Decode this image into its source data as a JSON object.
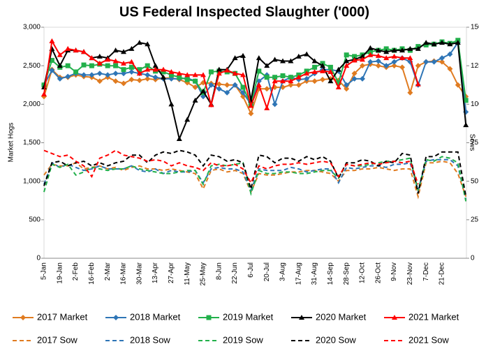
{
  "chart_data": {
    "type": "line",
    "title": "US Federal Inspected Slaughter ('000)",
    "y_label": "Market Hogs",
    "y2_label": "Sows",
    "categories": [
      "5-Jan",
      null,
      "19-Jan",
      null,
      "2-Feb",
      null,
      "16-Feb",
      null,
      "2-Mar",
      null,
      "16-Mar",
      null,
      "30-Mar",
      null,
      "13-Apr",
      null,
      "27-Apr",
      null,
      "11-May",
      null,
      "25-May",
      null,
      "8-Jun",
      null,
      "22-Jun",
      null,
      "6-Jul",
      null,
      "20-Jul",
      null,
      "3-Aug",
      null,
      "17-Aug",
      null,
      "31-Aug",
      null,
      "14-Sep",
      null,
      "28-Sep",
      null,
      "12-Oct",
      null,
      "26-Oct",
      null,
      "9-Nov",
      null,
      "23-Nov",
      null,
      "7-Dec",
      null,
      "21-Dec",
      null,
      null,
      null
    ],
    "ylim": [
      0,
      3000
    ],
    "yticks": [
      0,
      500,
      {
        "value": 1000,
        "label": "1,000"
      },
      {
        "value": 1500,
        "label": "1,500"
      },
      {
        "value": 2000,
        "label": "2,000"
      },
      {
        "value": 2500,
        "label": "2,500"
      },
      {
        "value": 3000,
        "label": "3,000"
      }
    ],
    "y2lim": [
      0,
      150
    ],
    "y2ticks": [
      0,
      25,
      50,
      75,
      100,
      125,
      150
    ],
    "series": [
      {
        "name": "2017 Market",
        "color": "#e07b20",
        "marker": "diamond",
        "values": [
          2100,
          2450,
          2350,
          2350,
          2380,
          2360,
          2350,
          2300,
          2350,
          2300,
          2270,
          2320,
          2310,
          2330,
          2320,
          2340,
          2340,
          2320,
          2280,
          2220,
          2280,
          2270,
          2260,
          2250,
          2250,
          2100,
          1880,
          2200,
          2200,
          2220,
          2220,
          2250,
          2250,
          2300,
          2300,
          2320,
          2330,
          2310,
          2200,
          2400,
          2500,
          2520,
          2500,
          2480,
          2500,
          2480,
          2150,
          2500,
          2550,
          2560,
          2550,
          2460,
          2250,
          2100
        ]
      },
      {
        "name": "2018 Market",
        "color": "#2e75b6",
        "marker": "diamond",
        "values": [
          2250,
          2440,
          2330,
          2360,
          2400,
          2380,
          2380,
          2400,
          2380,
          2400,
          2400,
          2420,
          2400,
          2380,
          2350,
          2330,
          2330,
          2330,
          2340,
          2300,
          2100,
          2250,
          2200,
          2150,
          2250,
          2150,
          2000,
          2300,
          2380,
          2000,
          2300,
          2350,
          2320,
          2330,
          2400,
          2450,
          2450,
          2430,
          2250,
          2330,
          2330,
          2550,
          2560,
          2500,
          2550,
          2600,
          2550,
          2250,
          2550,
          2550,
          2600,
          2650,
          2800,
          1900
        ]
      },
      {
        "name": "2019 Market",
        "color": "#22b04b",
        "marker": "square",
        "values": [
          2250,
          2570,
          2480,
          2500,
          2420,
          2510,
          2500,
          2520,
          2500,
          2500,
          2450,
          2480,
          2450,
          2500,
          2430,
          2420,
          2380,
          2350,
          2320,
          2300,
          2150,
          2420,
          2430,
          2420,
          2400,
          2220,
          2000,
          2430,
          2350,
          2350,
          2370,
          2350,
          2380,
          2430,
          2480,
          2530,
          2480,
          2280,
          2640,
          2620,
          2640,
          2680,
          2700,
          2720,
          2700,
          2720,
          2700,
          2750,
          2770,
          2780,
          2810,
          2790,
          2830,
          2050
        ]
      },
      {
        "name": "2020 Market",
        "color": "#000000",
        "marker": "triangle",
        "values": [
          2220,
          2720,
          2500,
          2700,
          2700,
          2680,
          2600,
          2620,
          2600,
          2700,
          2680,
          2720,
          2800,
          2780,
          2500,
          2350,
          2000,
          1550,
          1800,
          2050,
          2170,
          2000,
          2450,
          2450,
          2600,
          2630,
          2050,
          2600,
          2500,
          2580,
          2560,
          2560,
          2620,
          2650,
          2560,
          2500,
          2300,
          2450,
          2560,
          2580,
          2620,
          2730,
          2700,
          2680,
          2700,
          2700,
          2720,
          2720,
          2800,
          2780,
          2800,
          2780,
          2800,
          1730
        ]
      },
      {
        "name": "2021 Market",
        "color": "#ff0000",
        "marker": "triangle",
        "values": [
          2130,
          2820,
          2640,
          2720,
          2700,
          2680,
          2600,
          2530,
          2580,
          2560,
          2530,
          2550,
          2400,
          2450,
          2450,
          2450,
          2420,
          2400,
          2380,
          2380,
          2380,
          1990,
          2400,
          2440,
          2400,
          2380,
          1980,
          2250,
          1950,
          2300,
          2300,
          2300,
          2350,
          2400,
          2420,
          2430,
          2420,
          2220,
          2500,
          2570,
          2580,
          2640,
          2630,
          2600,
          2620,
          2600,
          2600,
          2260,
          null,
          null,
          null,
          null,
          null,
          null
        ]
      },
      {
        "name": "2017 Sow",
        "color": "#e07b20",
        "axis": "y2",
        "dashed": true,
        "values": [
          54,
          61,
          60,
          60,
          62,
          58,
          59,
          60,
          58,
          59,
          57,
          59,
          60,
          58,
          58,
          57,
          58,
          57,
          56,
          55,
          45,
          57,
          58,
          56,
          57,
          55,
          43,
          55,
          54,
          54,
          55,
          56,
          56,
          57,
          57,
          56,
          55,
          50,
          57,
          57,
          58,
          58,
          59,
          58,
          57,
          58,
          58,
          40,
          62,
          62,
          63,
          62,
          55,
          40
        ]
      },
      {
        "name": "2018 Sow",
        "color": "#2e75b6",
        "axis": "y2",
        "dashed": true,
        "values": [
          48,
          62,
          59,
          61,
          59,
          57,
          58,
          60,
          58,
          58,
          58,
          60,
          57,
          56,
          58,
          55,
          57,
          56,
          56,
          57,
          49,
          58,
          59,
          58,
          58,
          56,
          44,
          58,
          57,
          57,
          57,
          59,
          58,
          56,
          57,
          58,
          58,
          49,
          59,
          58,
          59,
          60,
          60,
          59,
          61,
          61,
          62,
          44,
          63,
          64,
          64,
          64,
          60,
          38
        ]
      },
      {
        "name": "2019 Sow",
        "color": "#22b04b",
        "axis": "y2",
        "dashed": true,
        "values": [
          43,
          61,
          59,
          61,
          54,
          56,
          59,
          58,
          57,
          58,
          58,
          60,
          58,
          57,
          56,
          55,
          55,
          56,
          57,
          57,
          48,
          60,
          61,
          60,
          61,
          62,
          42,
          57,
          55,
          55,
          56,
          56,
          55,
          55,
          56,
          57,
          57,
          52,
          61,
          60,
          60,
          61,
          62,
          63,
          63,
          64,
          65,
          44,
          64,
          63,
          66,
          65,
          62,
          37
        ]
      },
      {
        "name": "2020 Sow",
        "color": "#000000",
        "axis": "y2",
        "dashed": true,
        "values": [
          47,
          62,
          63,
          60,
          62,
          63,
          60,
          62,
          60,
          62,
          63,
          67,
          67,
          62,
          67,
          69,
          68,
          70,
          69,
          67,
          60,
          67,
          66,
          63,
          64,
          62,
          45,
          67,
          66,
          62,
          65,
          65,
          63,
          66,
          64,
          66,
          63,
          52,
          62,
          62,
          64,
          63,
          60,
          63,
          62,
          68,
          67,
          42,
          66,
          66,
          69,
          69,
          69,
          40
        ]
      },
      {
        "name": "2021 Sow",
        "color": "#ff0000",
        "axis": "y2",
        "dashed": true,
        "values": [
          70,
          68,
          66,
          67,
          63,
          60,
          53,
          65,
          67,
          70,
          67,
          66,
          65,
          63,
          64,
          63,
          60,
          62,
          60,
          59,
          57,
          62,
          60,
          60,
          61,
          58,
          49,
          60,
          58,
          60,
          61,
          61,
          62,
          61,
          62,
          63,
          62,
          53,
          61,
          60,
          61,
          62,
          61,
          62,
          63,
          62,
          63,
          48,
          null,
          null,
          null,
          null,
          null,
          null
        ]
      }
    ]
  }
}
